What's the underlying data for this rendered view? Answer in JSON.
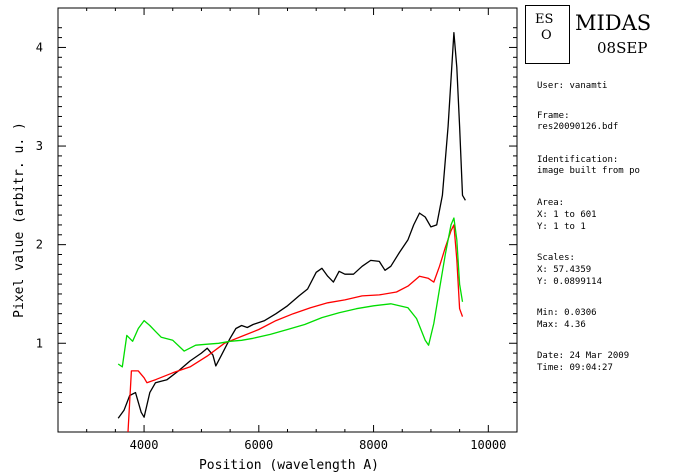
{
  "chart_data": {
    "type": "line",
    "xlabel": "Position (wavelength A)",
    "ylabel": "Pixel value (arbitr. u. )",
    "xlim": [
      2500,
      10500
    ],
    "ylim": [
      0.1,
      4.4
    ],
    "x_ticks": [
      4000,
      6000,
      8000,
      10000
    ],
    "y_ticks": [
      1,
      2,
      3,
      4
    ],
    "grid": false,
    "series": [
      {
        "color": "#000000",
        "points": [
          [
            3550,
            0.24
          ],
          [
            3650,
            0.32
          ],
          [
            3750,
            0.47
          ],
          [
            3850,
            0.5
          ],
          [
            3950,
            0.3
          ],
          [
            4000,
            0.25
          ],
          [
            4100,
            0.5
          ],
          [
            4200,
            0.6
          ],
          [
            4400,
            0.63
          ],
          [
            4600,
            0.72
          ],
          [
            4800,
            0.82
          ],
          [
            5000,
            0.9
          ],
          [
            5100,
            0.95
          ],
          [
            5200,
            0.88
          ],
          [
            5250,
            0.77
          ],
          [
            5350,
            0.88
          ],
          [
            5500,
            1.05
          ],
          [
            5600,
            1.15
          ],
          [
            5700,
            1.18
          ],
          [
            5800,
            1.16
          ],
          [
            5900,
            1.19
          ],
          [
            6100,
            1.23
          ],
          [
            6300,
            1.3
          ],
          [
            6500,
            1.38
          ],
          [
            6700,
            1.48
          ],
          [
            6850,
            1.55
          ],
          [
            7000,
            1.72
          ],
          [
            7100,
            1.76
          ],
          [
            7200,
            1.68
          ],
          [
            7300,
            1.62
          ],
          [
            7400,
            1.73
          ],
          [
            7500,
            1.7
          ],
          [
            7650,
            1.7
          ],
          [
            7800,
            1.78
          ],
          [
            7950,
            1.84
          ],
          [
            8100,
            1.83
          ],
          [
            8200,
            1.74
          ],
          [
            8300,
            1.78
          ],
          [
            8450,
            1.92
          ],
          [
            8600,
            2.05
          ],
          [
            8700,
            2.2
          ],
          [
            8800,
            2.32
          ],
          [
            8900,
            2.28
          ],
          [
            9000,
            2.18
          ],
          [
            9100,
            2.2
          ],
          [
            9200,
            2.5
          ],
          [
            9300,
            3.2
          ],
          [
            9400,
            4.15
          ],
          [
            9450,
            3.8
          ],
          [
            9500,
            3.2
          ],
          [
            9550,
            2.5
          ],
          [
            9600,
            2.45
          ]
        ]
      },
      {
        "color": "#ff0000",
        "points": [
          [
            3720,
            0.05
          ],
          [
            3780,
            0.72
          ],
          [
            3900,
            0.72
          ],
          [
            4000,
            0.65
          ],
          [
            4050,
            0.6
          ],
          [
            4200,
            0.63
          ],
          [
            4500,
            0.7
          ],
          [
            4800,
            0.76
          ],
          [
            5100,
            0.87
          ],
          [
            5400,
            1.0
          ],
          [
            5700,
            1.07
          ],
          [
            6000,
            1.14
          ],
          [
            6300,
            1.23
          ],
          [
            6600,
            1.3
          ],
          [
            6900,
            1.36
          ],
          [
            7200,
            1.41
          ],
          [
            7500,
            1.44
          ],
          [
            7800,
            1.48
          ],
          [
            8100,
            1.49
          ],
          [
            8400,
            1.52
          ],
          [
            8600,
            1.58
          ],
          [
            8800,
            1.68
          ],
          [
            8950,
            1.66
          ],
          [
            9050,
            1.62
          ],
          [
            9150,
            1.78
          ],
          [
            9250,
            1.97
          ],
          [
            9350,
            2.14
          ],
          [
            9400,
            2.2
          ],
          [
            9450,
            1.85
          ],
          [
            9500,
            1.35
          ],
          [
            9550,
            1.27
          ]
        ]
      },
      {
        "color": "#00dd00",
        "points": [
          [
            3550,
            0.79
          ],
          [
            3620,
            0.76
          ],
          [
            3700,
            1.08
          ],
          [
            3800,
            1.02
          ],
          [
            3900,
            1.15
          ],
          [
            4000,
            1.23
          ],
          [
            4100,
            1.18
          ],
          [
            4200,
            1.12
          ],
          [
            4300,
            1.06
          ],
          [
            4500,
            1.03
          ],
          [
            4700,
            0.92
          ],
          [
            4900,
            0.98
          ],
          [
            5100,
            0.99
          ],
          [
            5300,
            1.0
          ],
          [
            5500,
            1.02
          ],
          [
            5700,
            1.03
          ],
          [
            5900,
            1.05
          ],
          [
            6200,
            1.09
          ],
          [
            6500,
            1.14
          ],
          [
            6800,
            1.19
          ],
          [
            7100,
            1.26
          ],
          [
            7400,
            1.31
          ],
          [
            7700,
            1.35
          ],
          [
            8000,
            1.38
          ],
          [
            8300,
            1.4
          ],
          [
            8600,
            1.36
          ],
          [
            8750,
            1.25
          ],
          [
            8900,
            1.03
          ],
          [
            8960,
            0.98
          ],
          [
            9050,
            1.2
          ],
          [
            9150,
            1.55
          ],
          [
            9250,
            1.9
          ],
          [
            9350,
            2.2
          ],
          [
            9400,
            2.27
          ],
          [
            9450,
            2.05
          ],
          [
            9500,
            1.6
          ],
          [
            9550,
            1.42
          ]
        ]
      }
    ]
  },
  "info_panel": {
    "logo_eso": "ES",
    "logo_o": "O",
    "title": "MIDAS",
    "date_code": "08SEP",
    "user_label": "User:",
    "user_value": "vanamti",
    "frame_label": "Frame:",
    "frame_value": "res20090126.bdf",
    "ident_label": "Identification:",
    "ident_value": "image built from po",
    "area_label": "Area:",
    "area_x": "X: 1 to 601",
    "area_y": "Y: 1 to 1",
    "scales_label": "Scales:",
    "scales_x": "X: 57.4359",
    "scales_y": "Y: 0.0899114",
    "min_line": "Min: 0.0306",
    "max_line": "Max: 4.36",
    "date_line": "Date: 24 Mar 2009",
    "time_line": "Time: 09:04:27"
  }
}
